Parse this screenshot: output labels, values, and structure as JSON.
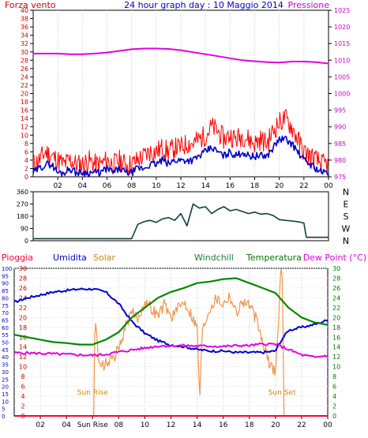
{
  "chart_data": [
    {
      "type": "line",
      "title": "24 hour graph day : 10 Maggio 2014",
      "left_axis_label": "Forza vento",
      "right_axis_label": "Pressione",
      "left_ylim": [
        0,
        40
      ],
      "left_ticks": [
        0,
        2,
        4,
        6,
        8,
        10,
        12,
        14,
        16,
        18,
        20,
        22,
        24,
        26,
        28,
        30,
        32,
        34,
        36,
        38,
        40
      ],
      "right_ylim": [
        975,
        1025
      ],
      "right_ticks": [
        975,
        980,
        985,
        990,
        995,
        1000,
        1005,
        1010,
        1015,
        1020,
        1025
      ],
      "x_ticks": [
        "02",
        "04",
        "06",
        "08",
        "10",
        "12",
        "14",
        "16",
        "18",
        "20",
        "22",
        "00"
      ],
      "colors": {
        "gust": "#ff0000",
        "speed": "#0000cc",
        "pressure": "#e000e0",
        "left_axis": "#cc0000",
        "right_axis": "#cc00cc"
      },
      "series": [
        {
          "role": "gust",
          "x": [
            0,
            0.5,
            1,
            1.5,
            2,
            2.5,
            3,
            3.5,
            4,
            4.5,
            5,
            5.5,
            6,
            6.5,
            7,
            7.5,
            8,
            8.5,
            9,
            9.5,
            10,
            10.5,
            11,
            11.5,
            12,
            12.5,
            13,
            13.5,
            14,
            14.5,
            15,
            15.5,
            16,
            16.5,
            17,
            17.5,
            18,
            18.5,
            19,
            19.5,
            20,
            20.5,
            21,
            21.5,
            22,
            22.5,
            23,
            23.5,
            24
          ],
          "values": [
            3,
            4,
            6,
            5,
            4,
            3,
            4,
            3,
            3,
            4,
            3,
            3,
            4,
            3,
            4,
            3,
            3,
            4,
            5,
            6,
            6,
            7,
            6,
            7,
            7,
            8,
            8,
            9,
            10,
            12,
            11,
            9,
            10,
            9,
            10,
            9,
            8,
            9,
            8,
            11,
            13,
            14,
            12,
            9,
            6,
            5,
            4,
            3,
            3
          ]
        },
        {
          "role": "speed",
          "x": [
            0,
            0.5,
            1,
            1.5,
            2,
            2.5,
            3,
            3.5,
            4,
            4.5,
            5,
            5.5,
            6,
            6.5,
            7,
            7.5,
            8,
            8.5,
            9,
            9.5,
            10,
            10.5,
            11,
            11.5,
            12,
            12.5,
            13,
            13.5,
            14,
            14.5,
            15,
            15.5,
            16,
            16.5,
            17,
            17.5,
            18,
            18.5,
            19,
            19.5,
            20,
            20.5,
            21,
            21.5,
            22,
            22.5,
            23,
            23.5,
            24
          ],
          "values": [
            1,
            2,
            3,
            3,
            1,
            1,
            2,
            1,
            1,
            1,
            1,
            1,
            2,
            1,
            2,
            1,
            1,
            2,
            2,
            3,
            3,
            4,
            3,
            4,
            4,
            4,
            4,
            5,
            6,
            7,
            6,
            5,
            6,
            5,
            6,
            5,
            5,
            5,
            5,
            7,
            9,
            9,
            8,
            6,
            4,
            3,
            2,
            1,
            1
          ]
        },
        {
          "role": "pressure",
          "x": [
            0,
            1,
            2,
            3,
            4,
            5,
            6,
            7,
            8,
            9,
            10,
            11,
            12,
            13,
            14,
            15,
            16,
            17,
            18,
            19,
            20,
            21,
            22,
            23,
            24
          ],
          "values": [
            1012,
            1012,
            1012,
            1011.8,
            1011.8,
            1012,
            1012.3,
            1012.8,
            1013.3,
            1013.5,
            1013.5,
            1013.4,
            1013,
            1012.4,
            1011.8,
            1011.2,
            1010.6,
            1010,
            1009.7,
            1009.4,
            1009.3,
            1009.6,
            1009.6,
            1009.4,
            1009
          ]
        }
      ]
    },
    {
      "type": "line",
      "title": "",
      "ylim": [
        0,
        360
      ],
      "left_ticks": [
        0,
        90,
        180,
        270,
        360
      ],
      "right_ticks": [
        "N",
        "W",
        "S",
        "E",
        "N"
      ],
      "x_ticks": [
        "02",
        "04",
        "06",
        "08",
        "10",
        "12",
        "14",
        "16",
        "18",
        "20",
        "22",
        "00"
      ],
      "colors": {
        "direction": "#0f3f3f"
      },
      "series": [
        {
          "role": "direction",
          "x": [
            0,
            1,
            2,
            3,
            4,
            5,
            6,
            7,
            8,
            8.5,
            9,
            9.5,
            10,
            10.5,
            11,
            11.5,
            12,
            12.5,
            13,
            13.5,
            14,
            14.5,
            15,
            15.5,
            16,
            16.5,
            17,
            17.5,
            18,
            18.5,
            19,
            19.5,
            20,
            20.5,
            21,
            21.5,
            22,
            22.2,
            22.5,
            23,
            23.5,
            24
          ],
          "values": [
            15,
            15,
            15,
            15,
            15,
            15,
            15,
            15,
            15,
            120,
            140,
            150,
            135,
            160,
            170,
            150,
            200,
            110,
            270,
            240,
            250,
            200,
            230,
            250,
            220,
            230,
            215,
            200,
            210,
            195,
            200,
            185,
            155,
            150,
            145,
            140,
            130,
            25,
            25,
            25,
            25,
            25
          ]
        }
      ]
    },
    {
      "type": "line",
      "title": "",
      "legend": [
        "Pioggia",
        "Umidita",
        "Solar",
        "Windchill",
        "Temperatura",
        "Dew Point (°C)"
      ],
      "legend_colors": [
        "#ff0033",
        "#0000cc",
        "#cc8800",
        "#1a7a3a",
        "#007700",
        "#e000e0"
      ],
      "humidity_ylim": [
        0,
        100
      ],
      "humidity_ticks": [
        0,
        5,
        10,
        15,
        20,
        25,
        30,
        35,
        40,
        45,
        50,
        55,
        60,
        65,
        70,
        75,
        80,
        85,
        90,
        95,
        100
      ],
      "temp_ylim": [
        0,
        30
      ],
      "temp_ticks": [
        0,
        2,
        4,
        6,
        8,
        10,
        12,
        14,
        16,
        18,
        20,
        22,
        24,
        26,
        28,
        30
      ],
      "x_ticks": [
        "02",
        "04",
        "Sun Rise",
        "08",
        "10",
        "12",
        "14",
        "16",
        "18",
        "20",
        "22",
        "00"
      ],
      "annotations": [
        {
          "text": "Sun Rise",
          "x": 6
        },
        {
          "text": "Sun Set",
          "x": 20.5
        }
      ],
      "series": [
        {
          "name": "Umidita",
          "axis": "humidity",
          "x": [
            0,
            1,
            2,
            3,
            4,
            5,
            6,
            7,
            8,
            9,
            10,
            11,
            12,
            13,
            14,
            15,
            16,
            17,
            18,
            19,
            20,
            20.5,
            21,
            22,
            23,
            24
          ],
          "values": [
            77,
            80,
            82,
            84,
            85,
            86,
            86,
            84,
            76,
            64,
            56,
            51,
            48,
            47,
            45,
            44,
            44,
            43,
            43,
            43,
            44,
            52,
            58,
            60,
            62,
            65
          ]
        },
        {
          "name": "Temperatura",
          "axis": "temperature",
          "x": [
            0,
            1,
            2,
            3,
            4,
            5,
            6,
            7,
            8,
            9,
            10,
            11,
            12,
            13,
            14,
            15,
            16,
            17,
            18,
            19,
            20,
            21,
            22,
            23,
            24
          ],
          "values": [
            16.5,
            16,
            15.5,
            15,
            14.8,
            14.5,
            14.5,
            15.5,
            17,
            20,
            22,
            24,
            25.2,
            26,
            27,
            27.3,
            27.8,
            28,
            27,
            26,
            25,
            22,
            20,
            19,
            18.5
          ]
        },
        {
          "name": "Dew Point (°C)",
          "axis": "temperature",
          "x": [
            0,
            1,
            2,
            3,
            4,
            5,
            6,
            7,
            8,
            9,
            10,
            11,
            12,
            13,
            14,
            15,
            16,
            17,
            18,
            19,
            20,
            21,
            22,
            23,
            24
          ],
          "values": [
            12.8,
            12.8,
            12.7,
            12.6,
            12.5,
            12.4,
            12.3,
            12.5,
            13.0,
            13.4,
            13.8,
            14.2,
            14.3,
            14.3,
            14.2,
            14.2,
            14.1,
            14.3,
            14.3,
            14.6,
            14.6,
            13.5,
            12.4,
            11.9,
            12.3
          ]
        },
        {
          "name": "Solar",
          "axis": "humidity",
          "x": [
            0,
            5.5,
            6,
            6.2,
            6.5,
            7,
            7.5,
            8,
            8.5,
            9,
            9.5,
            10,
            10.5,
            11,
            11.5,
            12,
            12.5,
            13,
            13.5,
            14,
            14.2,
            14.4,
            14.6,
            15,
            15.5,
            16,
            16.5,
            17,
            17.5,
            18,
            18.5,
            19,
            19.5,
            20,
            20.2,
            20.4,
            20.5,
            20.7,
            24
          ],
          "values": [
            0,
            0,
            0,
            70,
            33,
            35,
            38,
            45,
            60,
            70,
            66,
            78,
            73,
            68,
            76,
            67,
            72,
            78,
            70,
            60,
            13,
            58,
            64,
            74,
            80,
            76,
            82,
            70,
            78,
            75,
            66,
            50,
            36,
            30,
            58,
            100,
            98,
            0,
            0
          ]
        },
        {
          "name": "Pioggia",
          "axis": "humidity",
          "x": [
            0,
            24
          ],
          "values": [
            0,
            0
          ]
        }
      ]
    }
  ]
}
